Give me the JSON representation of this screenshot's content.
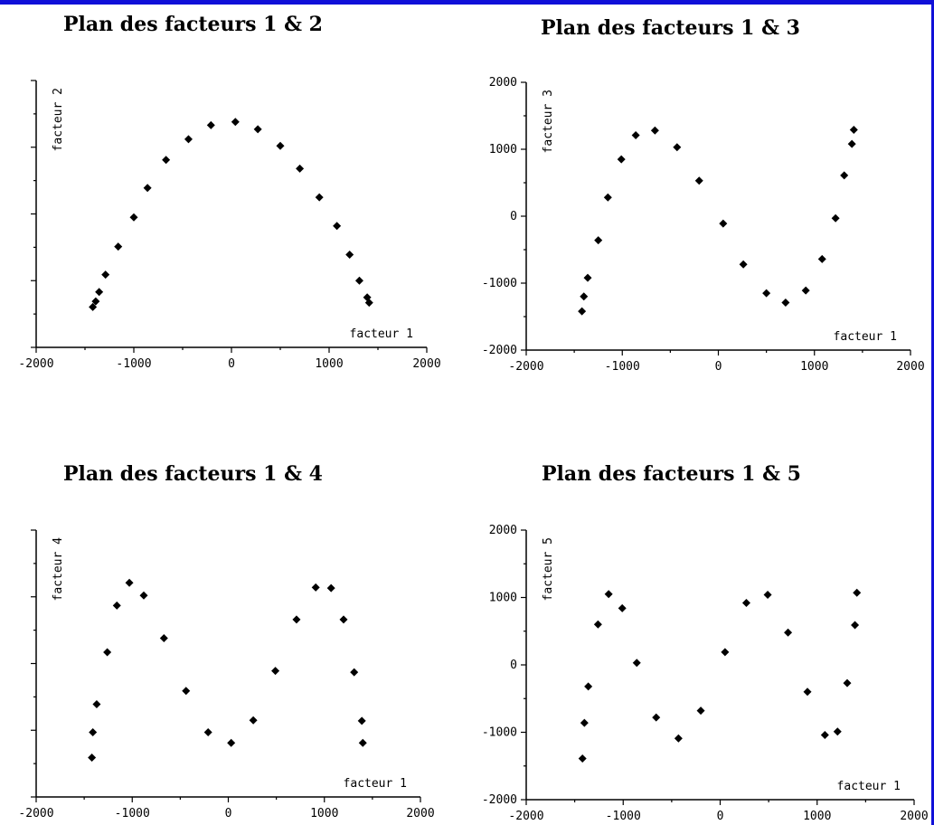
{
  "chart_data": [
    {
      "type": "scatter",
      "title": "Plan des facteurs 1 & 2",
      "xlabel": "facteur 1",
      "ylabel": "facteur 2",
      "xlim": [
        -2000,
        2000
      ],
      "ylim": [
        -2000,
        2000
      ],
      "xticks": [
        "-2000",
        "-1000",
        "0",
        "1000",
        "2000"
      ],
      "yticks": [],
      "points": [
        [
          -1420,
          -1395
        ],
        [
          -1390,
          -1310
        ],
        [
          -1355,
          -1170
        ],
        [
          -1290,
          -910
        ],
        [
          -1160,
          -490
        ],
        [
          -1000,
          -50
        ],
        [
          -860,
          390
        ],
        [
          -670,
          810
        ],
        [
          -440,
          1120
        ],
        [
          -210,
          1330
        ],
        [
          40,
          1380
        ],
        [
          270,
          1270
        ],
        [
          500,
          1020
        ],
        [
          700,
          680
        ],
        [
          900,
          250
        ],
        [
          1080,
          -180
        ],
        [
          1210,
          -610
        ],
        [
          1310,
          -1000
        ],
        [
          1390,
          -1250
        ],
        [
          1410,
          -1330
        ]
      ]
    },
    {
      "type": "scatter",
      "title": "Plan des facteurs 1 & 3",
      "xlabel": "facteur 1",
      "ylabel": "facteur 3",
      "xlim": [
        -2000,
        2000
      ],
      "ylim": [
        -2000,
        2000
      ],
      "xticks": [
        "-2000",
        "-1000",
        "0",
        "1000",
        "2000"
      ],
      "yticks": [
        "-2000",
        "-1000",
        "0",
        "1000",
        "2000"
      ],
      "points": [
        [
          -1420,
          -1420
        ],
        [
          -1400,
          -1200
        ],
        [
          -1360,
          -920
        ],
        [
          -1250,
          -360
        ],
        [
          -1150,
          280
        ],
        [
          -1010,
          850
        ],
        [
          -860,
          1210
        ],
        [
          -660,
          1280
        ],
        [
          -430,
          1030
        ],
        [
          -200,
          530
        ],
        [
          50,
          -110
        ],
        [
          260,
          -720
        ],
        [
          500,
          -1150
        ],
        [
          700,
          -1290
        ],
        [
          910,
          -1110
        ],
        [
          1080,
          -640
        ],
        [
          1220,
          -30
        ],
        [
          1310,
          610
        ],
        [
          1390,
          1080
        ],
        [
          1410,
          1290
        ]
      ]
    },
    {
      "type": "scatter",
      "title": "Plan des facteurs 1 & 4",
      "xlabel": "facteur 1",
      "ylabel": "facteur 4",
      "xlim": [
        -2000,
        2000
      ],
      "ylim": [
        -2000,
        2000
      ],
      "xticks": [
        "-2000",
        "-1000",
        "0",
        "1000",
        "2000"
      ],
      "yticks": [],
      "points": [
        [
          -1420,
          -1410
        ],
        [
          -1410,
          -1030
        ],
        [
          -1370,
          -610
        ],
        [
          -1260,
          170
        ],
        [
          -1160,
          870
        ],
        [
          -1030,
          1210
        ],
        [
          -880,
          1020
        ],
        [
          -670,
          380
        ],
        [
          -440,
          -410
        ],
        [
          -210,
          -1030
        ],
        [
          30,
          -1190
        ],
        [
          260,
          -850
        ],
        [
          490,
          -110
        ],
        [
          710,
          660
        ],
        [
          910,
          1140
        ],
        [
          1070,
          1130
        ],
        [
          1200,
          660
        ],
        [
          1310,
          -130
        ],
        [
          1390,
          -860
        ],
        [
          1400,
          -1190
        ]
      ]
    },
    {
      "type": "scatter",
      "title": "Plan des facteurs 1 & 5",
      "xlabel": "facteur 1",
      "ylabel": "facteur 5",
      "xlim": [
        -2000,
        2000
      ],
      "ylim": [
        -2000,
        2000
      ],
      "xticks": [
        "-2000",
        "-1000",
        "0",
        "1000",
        "2000"
      ],
      "yticks": [
        "-2000",
        "-1000",
        "0",
        "1000",
        "2000"
      ],
      "points": [
        [
          -1420,
          -1390
        ],
        [
          -1400,
          -860
        ],
        [
          -1360,
          -320
        ],
        [
          -1260,
          600
        ],
        [
          -1150,
          1050
        ],
        [
          -1010,
          840
        ],
        [
          -860,
          30
        ],
        [
          -660,
          -780
        ],
        [
          -430,
          -1090
        ],
        [
          -200,
          -680
        ],
        [
          50,
          190
        ],
        [
          270,
          920
        ],
        [
          490,
          1040
        ],
        [
          700,
          480
        ],
        [
          900,
          -400
        ],
        [
          1080,
          -1040
        ],
        [
          1210,
          -990
        ],
        [
          1310,
          -270
        ],
        [
          1390,
          590
        ],
        [
          1410,
          1070
        ]
      ]
    }
  ]
}
